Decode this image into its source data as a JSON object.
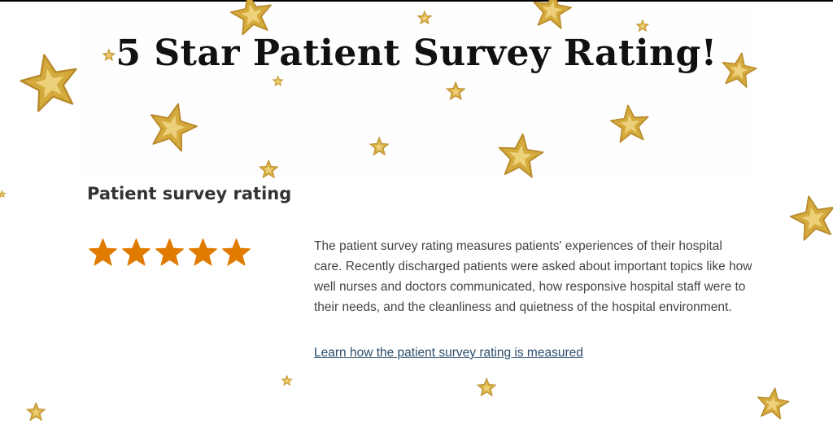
{
  "headline": "5 Star Patient Survey Rating!",
  "section": {
    "title": "Patient survey rating",
    "rating": 5,
    "rating_max": 5,
    "star_color": "#e07b00",
    "description": "The patient survey rating measures patients' experiences of their hospital care. Recently discharged patients were asked about important topics like how well nurses and doctors communicated, how responsive hospital staff were to their needs, and the cleanliness and quietness of the hospital environment.",
    "link_text": "Learn how the patient survey rating is measured"
  },
  "decoration": {
    "icon": "glitter-gold-star-icon",
    "color": "#d4aa3c"
  }
}
